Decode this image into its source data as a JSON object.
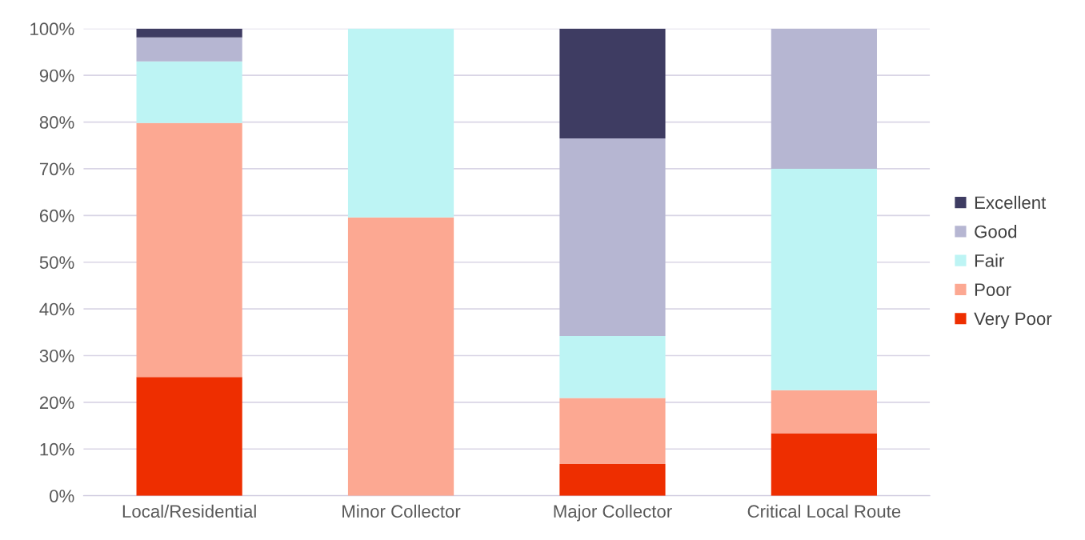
{
  "chart_data": {
    "type": "bar",
    "stacked": true,
    "categories": [
      "Local/Residential",
      "Minor Collector",
      "Major Collector",
      "Critical Local Route"
    ],
    "series": [
      {
        "name": "Very Poor",
        "color": "#ee2e00",
        "values": [
          25.4,
          0,
          6.8,
          13.4
        ]
      },
      {
        "name": "Poor",
        "color": "#fca892",
        "values": [
          54.4,
          59.6,
          14.1,
          9.2
        ]
      },
      {
        "name": "Fair",
        "color": "#bdf4f4",
        "values": [
          13.2,
          40.4,
          13.3,
          47.4
        ]
      },
      {
        "name": "Good",
        "color": "#b6b6d2",
        "values": [
          5.1,
          0,
          42.3,
          30.0
        ]
      },
      {
        "name": "Excellent",
        "color": "#3e3c62",
        "values": [
          1.9,
          0,
          23.5,
          0
        ]
      }
    ],
    "ylim": [
      0,
      100
    ],
    "yticks": [
      {
        "value": 0,
        "label": "0%"
      },
      {
        "value": 10,
        "label": "10%"
      },
      {
        "value": 20,
        "label": "20%"
      },
      {
        "value": 30,
        "label": "30%"
      },
      {
        "value": 40,
        "label": "40%"
      },
      {
        "value": 50,
        "label": "50%"
      },
      {
        "value": 60,
        "label": "60%"
      },
      {
        "value": 70,
        "label": "70%"
      },
      {
        "value": 80,
        "label": "80%"
      },
      {
        "value": 90,
        "label": "90%"
      },
      {
        "value": 100,
        "label": "100%"
      }
    ],
    "grid": "y",
    "legend": "right"
  }
}
